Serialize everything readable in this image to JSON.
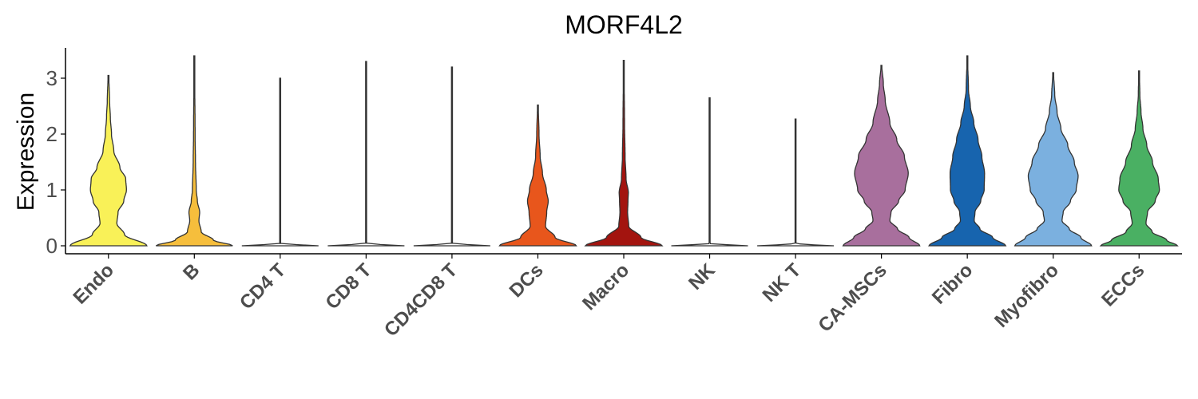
{
  "chart_data": {
    "type": "violin",
    "title": "MORF4L2",
    "xlabel": "",
    "ylabel": "Expression",
    "ylim": [
      -0.15,
      3.55
    ],
    "yticks": [
      0,
      1,
      2,
      3
    ],
    "grid": false,
    "legend": "none",
    "categories": [
      {
        "name": "Endo",
        "color": "#f9f158",
        "max": 3.05,
        "profile": [
          [
            0,
            1.0
          ],
          [
            0.2,
            0.42
          ],
          [
            0.4,
            0.22
          ],
          [
            0.6,
            0.25
          ],
          [
            0.8,
            0.4
          ],
          [
            1.0,
            0.47
          ],
          [
            1.2,
            0.45
          ],
          [
            1.4,
            0.3
          ],
          [
            1.7,
            0.14
          ],
          [
            2.0,
            0.08
          ],
          [
            2.3,
            0.05
          ],
          [
            2.6,
            0.03
          ],
          [
            3.05,
            0.01
          ]
        ]
      },
      {
        "name": "B",
        "color": "#f6be3c",
        "max": 3.4,
        "profile": [
          [
            0,
            1.0
          ],
          [
            0.1,
            0.5
          ],
          [
            0.25,
            0.18
          ],
          [
            0.45,
            0.12
          ],
          [
            0.6,
            0.14
          ],
          [
            0.8,
            0.08
          ],
          [
            1.0,
            0.05
          ],
          [
            1.5,
            0.03
          ],
          [
            2.0,
            0.02
          ],
          [
            3.4,
            0.005
          ]
        ]
      },
      {
        "name": "CD4 T",
        "color": "#ffffff",
        "max": 3.0,
        "profile": [
          [
            0,
            1.0
          ],
          [
            0.015,
            0.5
          ],
          [
            0.04,
            0.01
          ],
          [
            3.0,
            0.003
          ]
        ]
      },
      {
        "name": "CD8 T",
        "color": "#ffffff",
        "max": 3.3,
        "profile": [
          [
            0,
            1.0
          ],
          [
            0.015,
            0.5
          ],
          [
            0.04,
            0.01
          ],
          [
            3.3,
            0.003
          ]
        ]
      },
      {
        "name": "CD4CD8 T",
        "color": "#ffffff",
        "max": 3.2,
        "profile": [
          [
            0,
            1.0
          ],
          [
            0.015,
            0.5
          ],
          [
            0.04,
            0.01
          ],
          [
            3.2,
            0.003
          ]
        ]
      },
      {
        "name": "DCs",
        "color": "#e8561c",
        "max": 2.52,
        "profile": [
          [
            0,
            1.0
          ],
          [
            0.15,
            0.45
          ],
          [
            0.35,
            0.2
          ],
          [
            0.6,
            0.23
          ],
          [
            0.8,
            0.27
          ],
          [
            1.0,
            0.22
          ],
          [
            1.3,
            0.12
          ],
          [
            1.6,
            0.06
          ],
          [
            2.0,
            0.03
          ],
          [
            2.52,
            0.01
          ]
        ]
      },
      {
        "name": "Macro",
        "color": "#a3140f",
        "max": 3.32,
        "profile": [
          [
            0,
            1.0
          ],
          [
            0.15,
            0.45
          ],
          [
            0.35,
            0.13
          ],
          [
            0.6,
            0.1
          ],
          [
            0.8,
            0.11
          ],
          [
            0.95,
            0.12
          ],
          [
            1.2,
            0.06
          ],
          [
            1.6,
            0.035
          ],
          [
            2.2,
            0.02
          ],
          [
            3.32,
            0.005
          ]
        ]
      },
      {
        "name": "NK",
        "color": "#ffffff",
        "max": 2.65,
        "profile": [
          [
            0,
            1.0
          ],
          [
            0.015,
            0.5
          ],
          [
            0.04,
            0.01
          ],
          [
            2.65,
            0.003
          ]
        ]
      },
      {
        "name": "NK T",
        "color": "#ffffff",
        "max": 2.27,
        "profile": [
          [
            0,
            1.0
          ],
          [
            0.015,
            0.5
          ],
          [
            0.04,
            0.01
          ],
          [
            2.27,
            0.003
          ]
        ]
      },
      {
        "name": "CA-MSCs",
        "color": "#a86f9d",
        "max": 3.23,
        "profile": [
          [
            0,
            1.0
          ],
          [
            0.15,
            0.72
          ],
          [
            0.3,
            0.42
          ],
          [
            0.45,
            0.22
          ],
          [
            0.6,
            0.25
          ],
          [
            0.8,
            0.45
          ],
          [
            1.0,
            0.62
          ],
          [
            1.3,
            0.7
          ],
          [
            1.6,
            0.6
          ],
          [
            1.9,
            0.4
          ],
          [
            2.2,
            0.22
          ],
          [
            2.6,
            0.1
          ],
          [
            2.9,
            0.05
          ],
          [
            3.23,
            0.01
          ]
        ]
      },
      {
        "name": "Fibro",
        "color": "#1764ae",
        "max": 3.4,
        "profile": [
          [
            0,
            1.0
          ],
          [
            0.15,
            0.66
          ],
          [
            0.3,
            0.33
          ],
          [
            0.45,
            0.18
          ],
          [
            0.6,
            0.2
          ],
          [
            0.8,
            0.35
          ],
          [
            1.0,
            0.44
          ],
          [
            1.3,
            0.45
          ],
          [
            1.6,
            0.38
          ],
          [
            1.9,
            0.28
          ],
          [
            2.2,
            0.17
          ],
          [
            2.5,
            0.08
          ],
          [
            2.8,
            0.03
          ],
          [
            3.4,
            0.005
          ]
        ]
      },
      {
        "name": "Myofibro",
        "color": "#7bb0df",
        "max": 3.1,
        "profile": [
          [
            0,
            1.0
          ],
          [
            0.15,
            0.72
          ],
          [
            0.3,
            0.42
          ],
          [
            0.45,
            0.23
          ],
          [
            0.6,
            0.26
          ],
          [
            0.8,
            0.45
          ],
          [
            1.0,
            0.6
          ],
          [
            1.25,
            0.65
          ],
          [
            1.5,
            0.55
          ],
          [
            1.8,
            0.38
          ],
          [
            2.1,
            0.2
          ],
          [
            2.4,
            0.1
          ],
          [
            2.7,
            0.04
          ],
          [
            3.1,
            0.01
          ]
        ]
      },
      {
        "name": "ECCs",
        "color": "#4ab063",
        "max": 3.13,
        "profile": [
          [
            0,
            1.0
          ],
          [
            0.1,
            0.72
          ],
          [
            0.25,
            0.34
          ],
          [
            0.4,
            0.18
          ],
          [
            0.6,
            0.22
          ],
          [
            0.8,
            0.42
          ],
          [
            1.0,
            0.53
          ],
          [
            1.2,
            0.5
          ],
          [
            1.5,
            0.35
          ],
          [
            1.8,
            0.2
          ],
          [
            2.1,
            0.1
          ],
          [
            2.4,
            0.05
          ],
          [
            2.7,
            0.02
          ],
          [
            3.13,
            0.005
          ]
        ]
      }
    ]
  }
}
